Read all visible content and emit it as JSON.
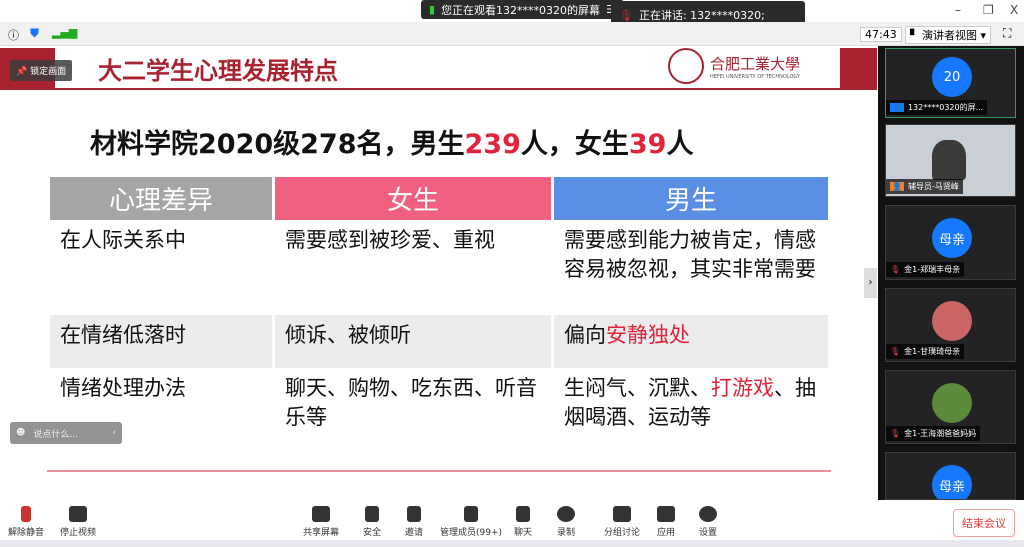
{
  "topbar": {
    "watching": "您正在观看132****0320的屏幕",
    "speaking": "正在讲话: 132****0320;"
  },
  "toolbar": {
    "timer": "47:43",
    "view": "演讲者视图"
  },
  "slide": {
    "lock": "锁定画面",
    "title": "大二学生心理发展特点",
    "logo_cn": "合肥工業大學",
    "logo_en": "HEFEI UNIVERSITY OF TECHNOLOGY",
    "headline": {
      "a": "材料学院2020级278名，男生",
      "b": "239",
      "c": "人，女生",
      "d": "39",
      "e": "人"
    },
    "table": {
      "headers": [
        "心理差异",
        "女生",
        "男生"
      ],
      "header_colors": [
        "#a6a6a6",
        "#f06080",
        "#5b8fe6"
      ],
      "rows": [
        {
          "c0": "在人际关系中",
          "c1": "需要感到被珍爱、重视",
          "c2a": "需要感到能力被肯定，情感容易被忽视，其实非常需要",
          "c2r": "",
          "c2b": ""
        },
        {
          "c0": "在情绪低落时",
          "c1": "倾诉、被倾听",
          "c2a": "偏向",
          "c2r": "安静独处",
          "c2b": ""
        },
        {
          "c0": "情绪处理办法",
          "c1": "聊天、购物、吃东西、听音乐等",
          "c2a": "生闷气、沉默、",
          "c2r": "打游戏",
          "c2b": "、抽烟喝酒、运动等"
        }
      ]
    },
    "chat_placeholder": "说点什么..."
  },
  "participants": [
    {
      "avatar": "20",
      "name": "132****0320的屏..."
    },
    {
      "avatar": "",
      "name": "辅导员-马贤峰"
    },
    {
      "avatar": "母亲",
      "name": "金1-郑瑞丰母亲"
    },
    {
      "avatar": "",
      "name": "金1-甘璞琦母亲"
    },
    {
      "avatar": "",
      "name": "金1-王海潮爸爸妈妈"
    },
    {
      "avatar": "母亲",
      "name": ""
    }
  ],
  "bottom": {
    "unmute": "解除静音",
    "stop_video": "停止视频",
    "share": "共享屏幕",
    "security": "安全",
    "invite": "邀请",
    "members": "管理成员(99+)",
    "chat": "聊天",
    "record": "录制",
    "breakout": "分组讨论",
    "apps": "应用",
    "settings": "设置",
    "end": "结束会议"
  }
}
